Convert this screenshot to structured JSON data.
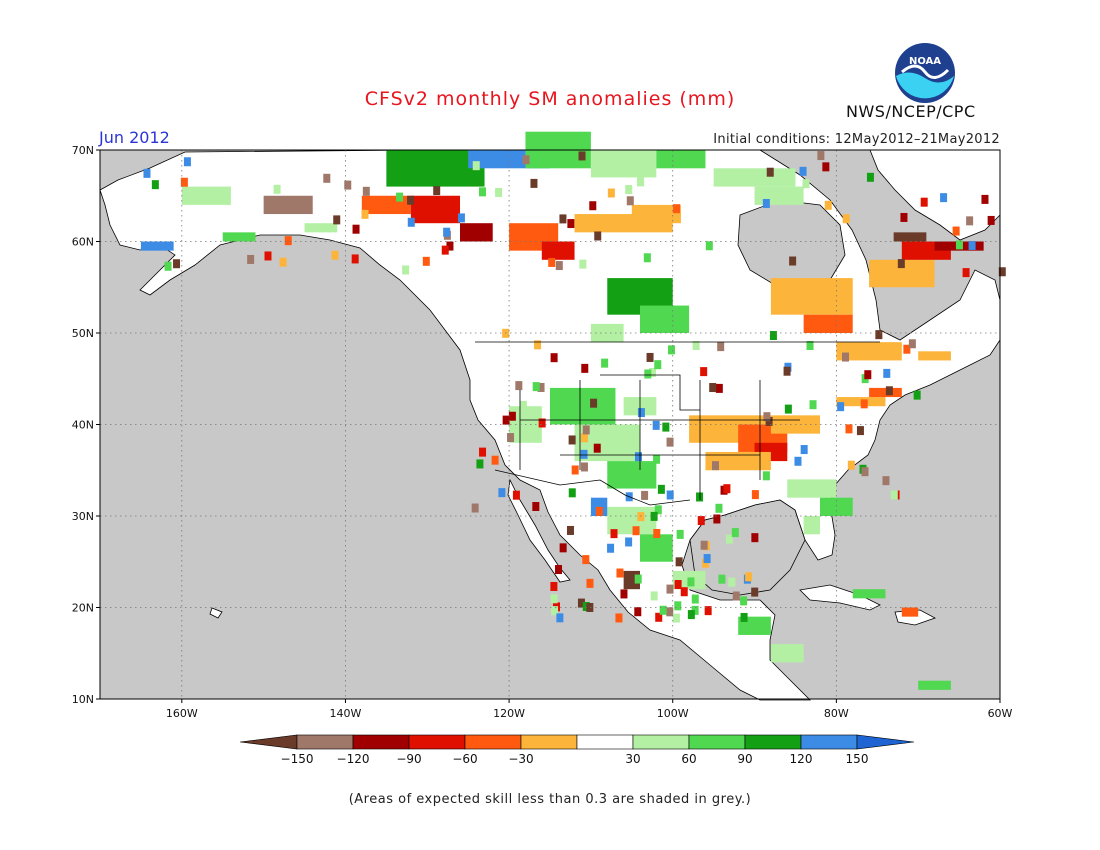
{
  "header": {
    "title": "CFSv2 monthly SM anomalies (mm)",
    "month": "Jun 2012",
    "initial_conditions": "Initial conditions: 12May2012–21May2012",
    "agency": "NWS/NCEP/CPC",
    "logo_text": "NOAA"
  },
  "footer": {
    "note": "(Areas of expected skill less than 0.3 are shaded in grey.)"
  },
  "map": {
    "lat_range": [
      10,
      70
    ],
    "lon_range": [
      -170,
      -60
    ],
    "lat_ticks": [
      "10N",
      "20N",
      "30N",
      "40N",
      "50N",
      "60N",
      "70N"
    ],
    "lon_ticks": [
      "160W",
      "140W",
      "120W",
      "100W",
      "80W",
      "60W"
    ],
    "ocean_color": "#c8c8c8",
    "land_color": "#ffffff"
  },
  "colorbar": {
    "labels": [
      "−150",
      "−120",
      "−90",
      "−60",
      "−30",
      "30",
      "60",
      "90",
      "120",
      "150"
    ],
    "colors": [
      "#6b3b2a",
      "#a0786a",
      "#a00000",
      "#e01000",
      "#ff5a10",
      "#fdb43b",
      "#ffffff",
      "#b4f0a4",
      "#50d850",
      "#14a014",
      "#3c8ce6",
      "#1e64d2"
    ]
  },
  "colors": {
    "title": "#e8141e",
    "month": "#2b35d6",
    "noaa_blue": "#1f3f8f",
    "noaa_cyan": "#3ad1f2"
  }
}
